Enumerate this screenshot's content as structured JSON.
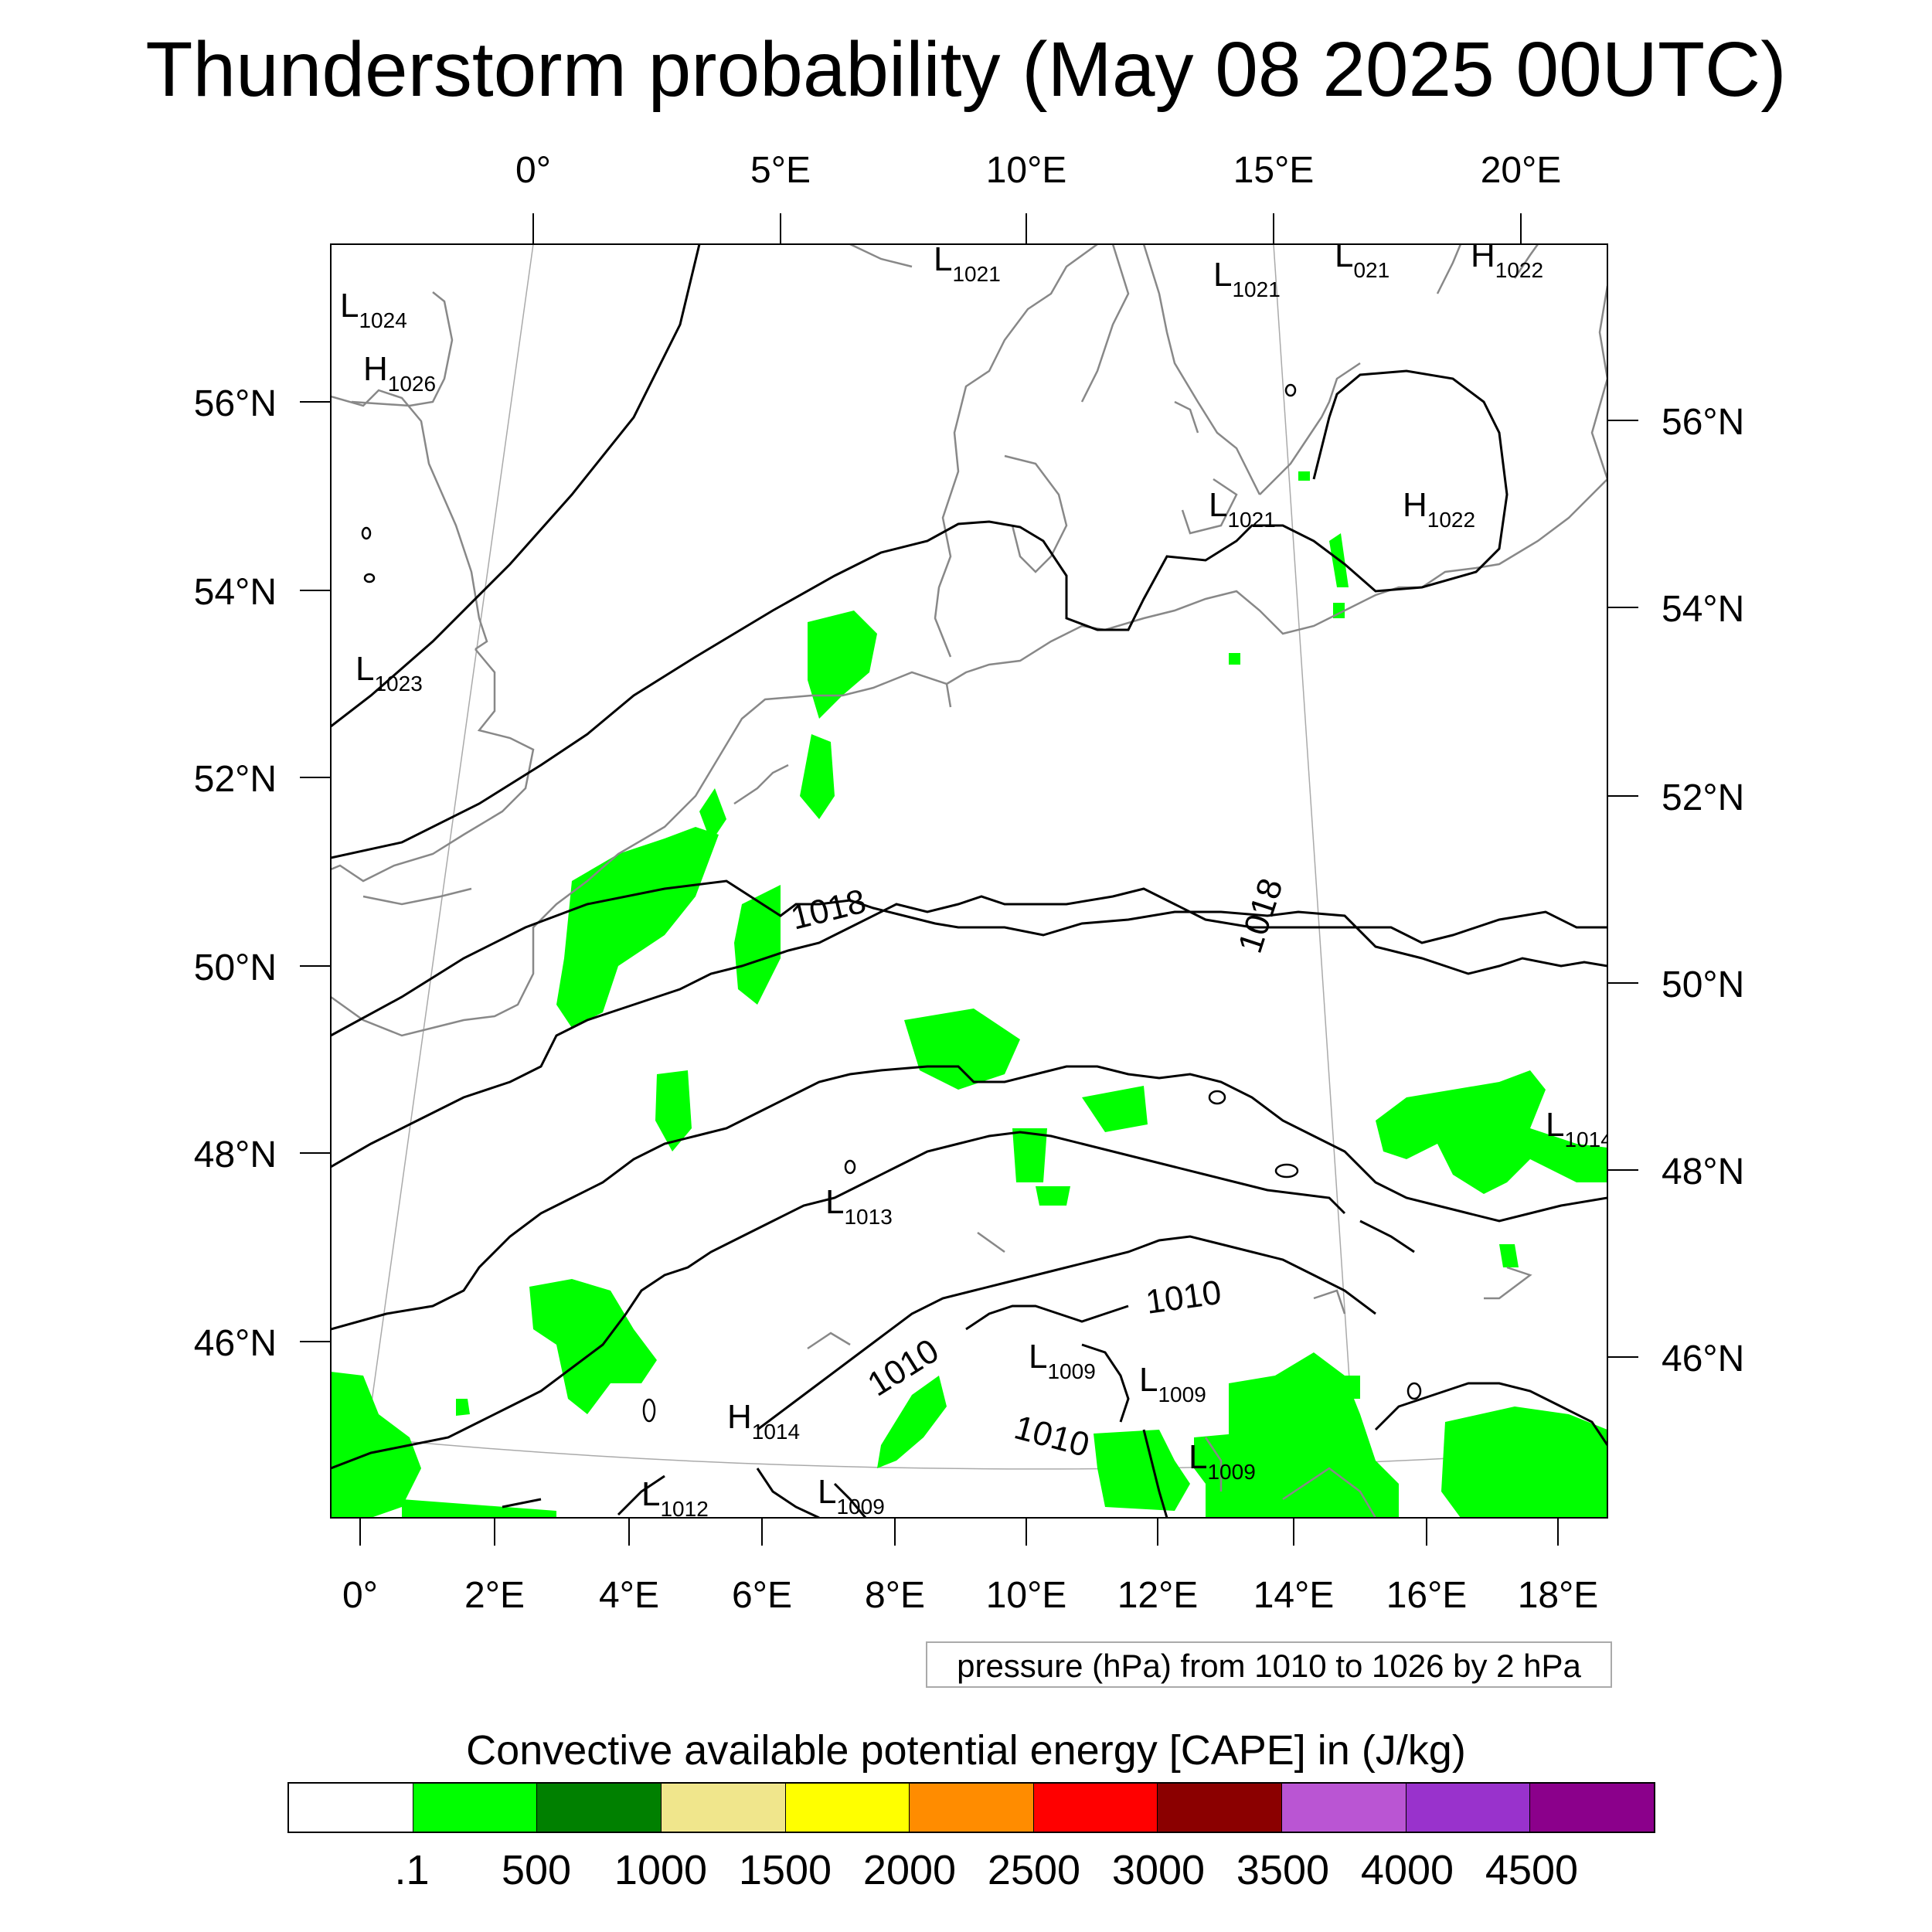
{
  "title": "Thunderstorm probability (May 08 2025 00UTC)",
  "top_lon_ticks": [
    "0°",
    "5°E",
    "10°E",
    "15°E",
    "20°E"
  ],
  "bottom_lon_ticks": [
    "0°",
    "2°E",
    "4°E",
    "6°E",
    "8°E",
    "10°E",
    "12°E",
    "14°E",
    "16°E",
    "18°E"
  ],
  "left_lat_ticks": [
    "56°N",
    "54°N",
    "52°N",
    "50°N",
    "48°N",
    "46°N"
  ],
  "right_lat_ticks": [
    "56°N",
    "54°N",
    "52°N",
    "50°N",
    "48°N",
    "46°N"
  ],
  "pressure_centers": [
    {
      "type": "L",
      "value": "1021"
    },
    {
      "type": "L",
      "value": "1021"
    },
    {
      "type": "L",
      "value": "021"
    },
    {
      "type": "H",
      "value": "1022"
    },
    {
      "type": "L",
      "value": "1024"
    },
    {
      "type": "H",
      "value": "1026"
    },
    {
      "type": "L",
      "value": "1023"
    },
    {
      "type": "L",
      "value": "1021"
    },
    {
      "type": "H",
      "value": "1022"
    },
    {
      "type": "L",
      "value": "1013"
    },
    {
      "type": "L",
      "value": "1014"
    },
    {
      "type": "H",
      "value": "1014"
    },
    {
      "type": "L",
      "value": "1009"
    },
    {
      "type": "L",
      "value": "1009"
    },
    {
      "type": "L",
      "value": "1009"
    },
    {
      "type": "L",
      "value": "1012"
    },
    {
      "type": "L",
      "value": "1009"
    }
  ],
  "isobar_labels": [
    "1018",
    "1018",
    "1010",
    "1010",
    "1010"
  ],
  "legend_text": "pressure (hPa) from 1010 to 1026 by 2 hPa",
  "colorbar": {
    "title": "Convective available potential energy [CAPE] in (J/kg)",
    "labels": [
      ".1",
      "500",
      "1000",
      "1500",
      "2000",
      "2500",
      "3000",
      "3500",
      "4000",
      "4500"
    ],
    "colors": [
      "#ffffff",
      "#00ff00",
      "#008000",
      "#f0e68c",
      "#ffff00",
      "#ff8c00",
      "#ff0000",
      "#8b0000",
      "#ba55d3",
      "#9932cc",
      "#8b008b"
    ]
  }
}
